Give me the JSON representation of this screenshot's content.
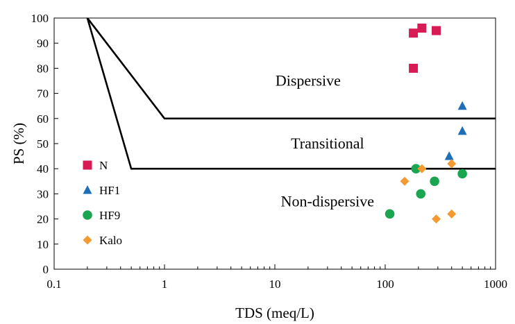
{
  "chart_data": {
    "type": "scatter",
    "title": "",
    "xlabel": "TDS (meq/L)",
    "ylabel": "PS (%)",
    "xscale": "log",
    "xlim": [
      0.1,
      1000
    ],
    "ylim": [
      0,
      100
    ],
    "x_ticks": [
      0.1,
      1,
      10,
      100,
      1000
    ],
    "x_tick_labels": [
      "0.1",
      "1",
      "10",
      "100",
      "1000"
    ],
    "y_ticks": [
      0,
      10,
      20,
      30,
      40,
      50,
      60,
      70,
      80,
      90,
      100
    ],
    "y_tick_labels": [
      "0",
      "10",
      "20",
      "30",
      "40",
      "50",
      "60",
      "70",
      "80",
      "90",
      "100"
    ],
    "grid": false,
    "legend_position": "left",
    "boundary_lines": [
      {
        "points": [
          [
            0.2,
            100
          ],
          [
            1,
            60
          ],
          [
            1000,
            60
          ]
        ]
      },
      {
        "points": [
          [
            0.2,
            100
          ],
          [
            0.5,
            40
          ],
          [
            1000,
            40
          ]
        ]
      }
    ],
    "region_labels": [
      {
        "text": "Dispersive",
        "x": 20,
        "y": 73
      },
      {
        "text": "Transitional",
        "x": 30,
        "y": 48
      },
      {
        "text": "Non-dispersive",
        "x": 30,
        "y": 25
      }
    ],
    "series": [
      {
        "name": "N",
        "marker": "square",
        "color": "#d81b55",
        "points": [
          [
            180,
            94
          ],
          [
            215,
            96
          ],
          [
            290,
            95
          ],
          [
            180,
            80
          ]
        ]
      },
      {
        "name": "HF1",
        "marker": "triangle",
        "color": "#1d6fb8",
        "points": [
          [
            500,
            65
          ],
          [
            500,
            55
          ],
          [
            380,
            45
          ]
        ]
      },
      {
        "name": "HF9",
        "marker": "circle",
        "color": "#1aa651",
        "points": [
          [
            110,
            22
          ],
          [
            190,
            40
          ],
          [
            210,
            30
          ],
          [
            280,
            35
          ],
          [
            500,
            38
          ]
        ]
      },
      {
        "name": "Kalo",
        "marker": "diamond",
        "color": "#f49a33",
        "points": [
          [
            150,
            35
          ],
          [
            215,
            40
          ],
          [
            400,
            42
          ],
          [
            290,
            20
          ],
          [
            400,
            22
          ]
        ]
      }
    ]
  }
}
